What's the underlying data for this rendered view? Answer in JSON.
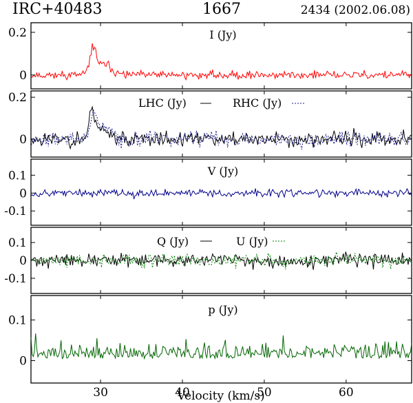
{
  "header": {
    "source": "IRC+40483",
    "line": "1667",
    "epoch": "2434 (2002.06.08)"
  },
  "xaxis": {
    "label": "Velocity (km/s)",
    "range": [
      21.5,
      68
    ],
    "ticks": [
      30,
      40,
      50,
      60
    ],
    "tick_labels": [
      "30",
      "40",
      "50",
      "60"
    ]
  },
  "colors": {
    "I": "#ff0000",
    "LHC": "#000000",
    "RHC": "#1a1a8c",
    "V": "#00008b",
    "Q": "#000000",
    "U": "#008000",
    "p": "#006400"
  },
  "chart_data": [
    {
      "type": "line",
      "panel": "I",
      "title": "I (Jy)",
      "ylim": [
        -0.065,
        0.245
      ],
      "yticks": [
        0,
        0.2
      ],
      "ytick_labels": [
        "0",
        "0.2"
      ],
      "series": [
        {
          "key": "I",
          "noise": 0.016,
          "seed": 11,
          "peaks": [
            {
              "x": 29.1,
              "amp": 0.13,
              "w": 0.55
            },
            {
              "x": 30.6,
              "amp": 0.05,
              "w": 1.1
            }
          ]
        }
      ]
    },
    {
      "type": "line",
      "panel": "LHC_RHC",
      "legend": [
        {
          "label": "LHC (Jy)",
          "style": "solid",
          "key": "LHC"
        },
        {
          "label": "RHC (Jy)",
          "style": "dotted",
          "key": "RHC"
        }
      ],
      "ylim": [
        -0.085,
        0.23
      ],
      "yticks": [
        0,
        0.2
      ],
      "ytick_labels": [
        "0",
        "0.2"
      ],
      "series": [
        {
          "key": "LHC",
          "noise": 0.03,
          "seed": 23,
          "dash": "none",
          "peaks": [
            {
              "x": 29.0,
              "amp": 0.14,
              "w": 0.55
            },
            {
              "x": 30.5,
              "amp": 0.05,
              "w": 1.0
            }
          ]
        },
        {
          "key": "RHC",
          "noise": 0.03,
          "seed": 37,
          "dash": "2,2",
          "peaks": [
            {
              "x": 29.2,
              "amp": 0.13,
              "w": 0.55
            },
            {
              "x": 30.7,
              "amp": 0.05,
              "w": 1.0
            }
          ]
        }
      ]
    },
    {
      "type": "line",
      "panel": "V",
      "title": "V (Jy)",
      "ylim": [
        -0.18,
        0.19
      ],
      "yticks": [
        -0.1,
        0,
        0.1
      ],
      "ytick_labels": [
        "-0.1",
        "0",
        "0.1"
      ],
      "series": [
        {
          "key": "V",
          "noise": 0.018,
          "seed": 53,
          "peaks": []
        }
      ]
    },
    {
      "type": "line",
      "panel": "Q_U",
      "legend": [
        {
          "label": "Q (Jy)",
          "style": "solid",
          "key": "Q"
        },
        {
          "label": "U (Jy)",
          "style": "dotted",
          "key": "U"
        }
      ],
      "ylim": [
        -0.185,
        0.185
      ],
      "yticks": [
        -0.1,
        0,
        0.1
      ],
      "ytick_labels": [
        "-0.1",
        "0",
        "0.1"
      ],
      "series": [
        {
          "key": "Q",
          "noise": 0.03,
          "seed": 71,
          "dash": "none",
          "peaks": []
        },
        {
          "key": "U",
          "noise": 0.03,
          "seed": 89,
          "dash": "2,2",
          "peaks": []
        }
      ]
    },
    {
      "type": "line",
      "panel": "p",
      "title": "p (Jy)",
      "ylim": [
        -0.055,
        0.16
      ],
      "yticks": [
        0,
        0.1
      ],
      "ytick_labels": [
        "0",
        "0.1"
      ],
      "series": [
        {
          "key": "p",
          "noise": 0.02,
          "seed": 97,
          "positive": true,
          "base": 0.02,
          "peaks": []
        }
      ]
    }
  ]
}
